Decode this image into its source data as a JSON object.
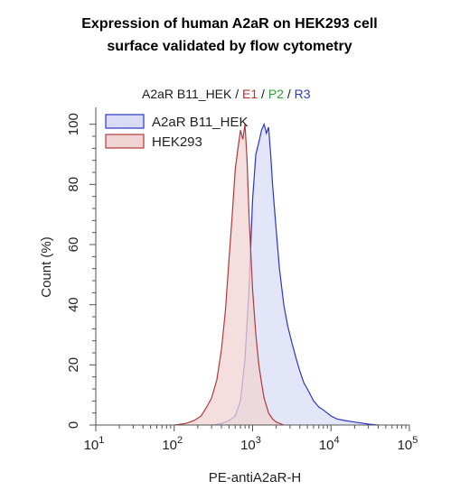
{
  "title_lines": [
    "Expression of human A2aR on HEK293 cell",
    "surface validated by flow cytometry"
  ],
  "gate_header": [
    {
      "text": "A2aR B11_HEK",
      "color": "#1a1a1a"
    },
    {
      "text": " / ",
      "color": "#1a1a1a"
    },
    {
      "text": "E1",
      "color": "#c62828"
    },
    {
      "text": " / ",
      "color": "#1a1a1a"
    },
    {
      "text": "P2",
      "color": "#2e9e3a"
    },
    {
      "text": " / ",
      "color": "#1a1a1a"
    },
    {
      "text": "R3",
      "color": "#2a36c8"
    }
  ],
  "chart_data": {
    "type": "area",
    "title": "Expression of human A2aR on HEK293 cell surface validated by flow cytometry",
    "xlabel": "PE-antiA2aR-H",
    "ylabel": "Count (%)",
    "x_scale": "log",
    "xlim": [
      10,
      100000
    ],
    "ylim": [
      0,
      105
    ],
    "x_ticks": [
      {
        "value": 10,
        "base": "10",
        "exp": "1"
      },
      {
        "value": 100,
        "base": "10",
        "exp": "2"
      },
      {
        "value": 1000,
        "base": "10",
        "exp": "3"
      },
      {
        "value": 10000,
        "base": "10",
        "exp": "4"
      },
      {
        "value": 100000,
        "base": "10",
        "exp": "5"
      }
    ],
    "y_ticks": [
      "0",
      "20",
      "40",
      "60",
      "80",
      "100"
    ],
    "y_tick_values": [
      0,
      20,
      40,
      60,
      80,
      100
    ],
    "grid": false,
    "legend_position": "top-left",
    "series": [
      {
        "name": "A2aR B11_HEK",
        "color": "#2a36c8",
        "fill": "#dadcf5",
        "x": [
          316,
          400,
          500,
          600,
          700,
          800,
          900,
          1000,
          1100,
          1200,
          1300,
          1400,
          1500,
          1600,
          1700,
          1800,
          1900,
          2000,
          2200,
          2500,
          2800,
          3200,
          3600,
          4000,
          4500,
          5000,
          6000,
          7000,
          8000,
          10000,
          12000,
          15000,
          20000,
          30000,
          40000
        ],
        "y": [
          0,
          0.5,
          1.5,
          3,
          8,
          22,
          45,
          75,
          90,
          94,
          98,
          100,
          97,
          99,
          90,
          80,
          72,
          65,
          52,
          40,
          33,
          27,
          22,
          18,
          14,
          12,
          8,
          6,
          5,
          3,
          2,
          1.5,
          1,
          0.3,
          0
        ]
      },
      {
        "name": "HEK293",
        "color": "#b03a3a",
        "fill": "#f0d3d3",
        "x": [
          100,
          140,
          180,
          220,
          260,
          300,
          350,
          400,
          450,
          500,
          550,
          600,
          650,
          700,
          750,
          800,
          850,
          900,
          1000,
          1100,
          1200,
          1300,
          1400,
          1600,
          1800,
          2000,
          2500
        ],
        "y": [
          0,
          0.5,
          1.5,
          3,
          6,
          9,
          15,
          25,
          38,
          55,
          70,
          85,
          92,
          98,
          95,
          100,
          88,
          70,
          45,
          30,
          20,
          14,
          9,
          4,
          2,
          1,
          0
        ]
      }
    ]
  }
}
